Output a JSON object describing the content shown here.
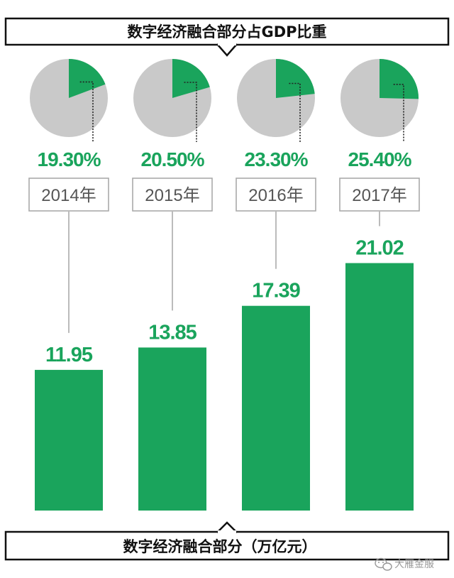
{
  "chart_data": {
    "type": "bar",
    "title": "数字经济融合部分占GDP比重",
    "categories": [
      "2014年",
      "2015年",
      "2016年",
      "2017年"
    ],
    "share_of_gdp": {
      "values": [
        19.3,
        20.5,
        23.3,
        25.4
      ],
      "labels": [
        "19.30%",
        "20.50%",
        "23.30%",
        "25.40%"
      ]
    },
    "series": [
      {
        "values": [
          11.95,
          13.85,
          17.39,
          21.02
        ]
      }
    ],
    "value_labels": [
      "11.95",
      "13.85",
      "17.39",
      "21.02"
    ],
    "xlabel": "数字经济融合部分（万亿元）",
    "ylim": [
      0,
      23.1
    ],
    "grid": false,
    "legend": "none"
  },
  "colors": {
    "accent": "#1aa45c",
    "pie_rest": "#c9c9c9",
    "frame": "#111111",
    "year_box": "#aaaaaa",
    "connector": "#bbbbbb"
  },
  "watermark": {
    "icon": "wechat-icon",
    "text": "大雁金服"
  }
}
